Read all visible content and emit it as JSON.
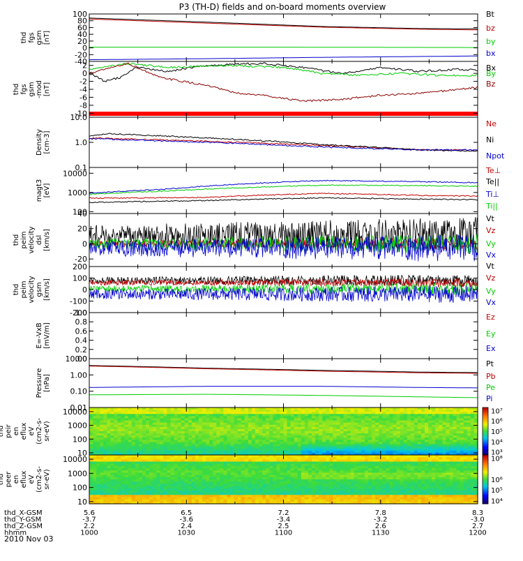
{
  "title": "P3 (TH-D) fields and on-board moments overview",
  "date": "2010 Nov 03",
  "orbit_rows": [
    {
      "label": "thd_X-GSM",
      "values": [
        "5.6",
        "6.5",
        "7.2",
        "7.8",
        "8.3"
      ]
    },
    {
      "label": "thd_Y-GSM",
      "values": [
        "-3.7",
        "-3.6",
        "-3.4",
        "-3.2",
        "-3.0"
      ]
    },
    {
      "label": "thd_Z-GSM",
      "values": [
        "2.2",
        "2.4",
        "2.5",
        "2.6",
        "2.7"
      ]
    },
    {
      "label": "hhmm",
      "values": [
        "1000",
        "1030",
        "1100",
        "1130",
        "1200"
      ]
    }
  ],
  "chart_data": [
    {
      "type": "line",
      "ylabel": [
        "thd",
        "fgs",
        "gsm",
        "[nT]"
      ],
      "ylim": [
        -40,
        100
      ],
      "yticks": [
        "100",
        "80",
        "60",
        "40",
        "20",
        "0",
        "-20",
        "-40"
      ],
      "tick_values": [
        100,
        80,
        60,
        40,
        20,
        0,
        -20,
        -40
      ],
      "series": [
        {
          "name": "Bt",
          "color": "#000000",
          "points": [
            [
              0,
              88
            ],
            [
              0.3,
              76
            ],
            [
              0.6,
              63
            ],
            [
              0.85,
              57
            ],
            [
              1,
              56
            ]
          ]
        },
        {
          "name": "bz",
          "color": "#c00000",
          "points": [
            [
              0,
              85
            ],
            [
              0.3,
              73
            ],
            [
              0.6,
              61
            ],
            [
              0.85,
              55
            ],
            [
              1,
              53
            ]
          ]
        },
        {
          "name": "by",
          "color": "#00cc00",
          "points": [
            [
              0,
              2
            ],
            [
              0.5,
              2
            ],
            [
              1,
              1
            ]
          ]
        },
        {
          "name": "bx",
          "color": "#0000cc",
          "points": [
            [
              0,
              -35
            ],
            [
              0.3,
              -32
            ],
            [
              0.6,
              -28
            ],
            [
              1,
              -24
            ]
          ]
        }
      ]
    },
    {
      "type": "line",
      "ylabel": [
        "thd",
        "fgs",
        "gsm",
        "-mod",
        "[nT]"
      ],
      "ylim": [
        -11,
        3
      ],
      "yticks": [
        "2",
        "0",
        "-2",
        "-4",
        "-6",
        "-8",
        "-10"
      ],
      "tick_values": [
        2,
        0,
        -2,
        -4,
        -6,
        -8,
        -10
      ],
      "series": [
        {
          "name": "Bx",
          "color": "#000000",
          "points": [
            [
              0,
              0
            ],
            [
              0.04,
              -2
            ],
            [
              0.08,
              -1
            ],
            [
              0.12,
              1.5
            ],
            [
              0.2,
              0.5
            ],
            [
              0.3,
              2
            ],
            [
              0.45,
              2.5
            ],
            [
              0.55,
              1.5
            ],
            [
              0.65,
              0
            ],
            [
              0.75,
              1.5
            ],
            [
              0.85,
              0.5
            ],
            [
              0.95,
              1
            ],
            [
              1,
              0.8
            ]
          ]
        },
        {
          "name": "By",
          "color": "#00cc00",
          "points": [
            [
              0,
              1
            ],
            [
              0.1,
              2.5
            ],
            [
              0.2,
              1.5
            ],
            [
              0.35,
              2
            ],
            [
              0.5,
              1.5
            ],
            [
              0.6,
              0
            ],
            [
              0.7,
              -0.5
            ],
            [
              0.8,
              0
            ],
            [
              0.9,
              -0.5
            ],
            [
              1,
              -0.5
            ]
          ]
        },
        {
          "name": "Bz",
          "color": "#8b0000",
          "points": [
            [
              0,
              0
            ],
            [
              0.1,
              2.5
            ],
            [
              0.18,
              -1
            ],
            [
              0.3,
              -3
            ],
            [
              0.38,
              -5
            ],
            [
              0.45,
              -5.5
            ],
            [
              0.55,
              -7
            ],
            [
              0.65,
              -6.5
            ],
            [
              0.75,
              -5.5
            ],
            [
              0.85,
              -5
            ],
            [
              0.95,
              -4
            ],
            [
              1,
              -3.5
            ]
          ]
        }
      ]
    },
    {
      "type": "line",
      "ylabel": [
        "Density",
        "[cm-3]"
      ],
      "log_scale": true,
      "ylim": [
        0.1,
        10
      ],
      "yticks": [
        "10.0",
        "1.0",
        "0.1"
      ],
      "tick_values": [
        10,
        1,
        0.1
      ],
      "series": [
        {
          "name": "Ne",
          "color": "#c00000",
          "points": [
            [
              0,
              1.5
            ],
            [
              0.3,
              1.1
            ],
            [
              0.6,
              0.75
            ],
            [
              0.85,
              0.5
            ],
            [
              1,
              0.5
            ]
          ]
        },
        {
          "name": "Ni",
          "color": "#000000",
          "points": [
            [
              0,
              1.8
            ],
            [
              0.05,
              2.2
            ],
            [
              0.3,
              1.5
            ],
            [
              0.6,
              0.8
            ],
            [
              0.85,
              0.5
            ],
            [
              1,
              0.45
            ]
          ]
        },
        {
          "name": "Npot",
          "color": "#0000cc",
          "points": [
            [
              0,
              1.4
            ],
            [
              0.3,
              1.0
            ],
            [
              0.6,
              0.65
            ],
            [
              0.85,
              0.5
            ],
            [
              1,
              0.5
            ]
          ]
        }
      ]
    },
    {
      "type": "line",
      "ylabel": [
        "magt3",
        "[eV]"
      ],
      "log_scale": true,
      "ylim": [
        80,
        20000
      ],
      "yticks": [
        "10000",
        "1000",
        "100"
      ],
      "tick_values": [
        10000,
        1000,
        100
      ],
      "series": [
        {
          "name": "Te⊥",
          "color": "#c00000",
          "points": [
            [
              0,
              500
            ],
            [
              0.3,
              550
            ],
            [
              0.6,
              900
            ],
            [
              0.85,
              700
            ],
            [
              1,
              650
            ]
          ]
        },
        {
          "name": "Te||",
          "color": "#000000",
          "points": [
            [
              0,
              300
            ],
            [
              0.3,
              380
            ],
            [
              0.6,
              520
            ],
            [
              0.85,
              450
            ],
            [
              1,
              420
            ]
          ]
        },
        {
          "name": "Ti⊥",
          "color": "#0000cc",
          "points": [
            [
              0,
              900
            ],
            [
              0.2,
              1500
            ],
            [
              0.4,
              2800
            ],
            [
              0.6,
              4200
            ],
            [
              0.85,
              3700
            ],
            [
              1,
              3200
            ]
          ]
        },
        {
          "name": "Ti||",
          "color": "#00cc00",
          "points": [
            [
              0,
              800
            ],
            [
              0.2,
              1200
            ],
            [
              0.4,
              1800
            ],
            [
              0.6,
              2400
            ],
            [
              0.85,
              2300
            ],
            [
              1,
              2100
            ]
          ]
        }
      ]
    },
    {
      "type": "line",
      "ylabel": [
        "thd",
        "peim",
        "velocity",
        "dsl",
        "[km/s]"
      ],
      "ylim": [
        -30,
        40
      ],
      "yticks": [
        "40",
        "20",
        "0",
        "-20"
      ],
      "tick_values": [
        40,
        20,
        0,
        -20
      ],
      "noise_series": true,
      "series": [
        {
          "name": "Vt",
          "color": "#000000",
          "mean": 12,
          "amp": 18
        },
        {
          "name": "Vz",
          "color": "#c00000",
          "mean": 0,
          "amp": 6
        },
        {
          "name": "Vy",
          "color": "#00cc00",
          "mean": 0,
          "amp": 10
        },
        {
          "name": "Vx",
          "color": "#0000cc",
          "mean": -6,
          "amp": 14
        }
      ]
    },
    {
      "type": "line",
      "ylabel": [
        "thd",
        "peim",
        "velocity",
        "gsm",
        "[km/s]"
      ],
      "ylim": [
        -200,
        200
      ],
      "yticks": [
        "200",
        "100",
        "0",
        "-100",
        "-200"
      ],
      "tick_values": [
        200,
        100,
        0,
        -100,
        -200
      ],
      "noise_series": true,
      "series": [
        {
          "name": "Vt",
          "color": "#000000",
          "mean": 80,
          "amp": 40
        },
        {
          "name": "Vz",
          "color": "#c00000",
          "mean": 60,
          "amp": 30
        },
        {
          "name": "Vy",
          "color": "#00cc00",
          "mean": 5,
          "amp": 40
        },
        {
          "name": "Vx",
          "color": "#0000cc",
          "mean": -40,
          "amp": 60
        }
      ]
    },
    {
      "type": "line",
      "ylabel": [
        "E=-VxB",
        "[mV/m]"
      ],
      "ylim": [
        0,
        1
      ],
      "yticks": [
        "1.0",
        "0.8",
        "0.6",
        "0.4",
        "0.2",
        "0.0"
      ],
      "tick_values": [
        1,
        0.8,
        0.6,
        0.4,
        0.2,
        0
      ],
      "series": [
        {
          "name": "Ez",
          "color": "#c00000",
          "points": []
        },
        {
          "name": "Ey",
          "color": "#00cc00",
          "points": []
        },
        {
          "name": "Ex",
          "color": "#0000cc",
          "points": []
        }
      ]
    },
    {
      "type": "line",
      "ylabel": [
        "Pressure",
        "[nPa]"
      ],
      "log_scale": true,
      "ylim": [
        0.01,
        10
      ],
      "yticks": [
        "10.00",
        "1.00",
        "0.10",
        "0.01"
      ],
      "tick_values": [
        10,
        1,
        0.1,
        0.01
      ],
      "series": [
        {
          "name": "Pt",
          "color": "#000000",
          "points": [
            [
              0,
              3.8
            ],
            [
              0.3,
              2.6
            ],
            [
              0.6,
              1.9
            ],
            [
              0.85,
              1.5
            ],
            [
              1,
              1.4
            ]
          ]
        },
        {
          "name": "Pb",
          "color": "#c00000",
          "points": [
            [
              0,
              3.5
            ],
            [
              0.3,
              2.4
            ],
            [
              0.6,
              1.7
            ],
            [
              0.85,
              1.35
            ],
            [
              1,
              1.25
            ]
          ]
        },
        {
          "name": "Pe",
          "color": "#00cc00",
          "points": [
            [
              0,
              0.06
            ],
            [
              0.3,
              0.065
            ],
            [
              0.6,
              0.055
            ],
            [
              0.85,
              0.045
            ],
            [
              1,
              0.04
            ]
          ]
        },
        {
          "name": "Pi",
          "color": "#0000cc",
          "points": [
            [
              0,
              0.17
            ],
            [
              0.3,
              0.2
            ],
            [
              0.6,
              0.2
            ],
            [
              0.85,
              0.17
            ],
            [
              1,
              0.16
            ]
          ]
        }
      ]
    },
    {
      "type": "heatmap",
      "ylabel": [
        "thd",
        "peir",
        "en",
        "eflux",
        "eV",
        "(cm2-s-",
        "sr-eV)"
      ],
      "log_scale": true,
      "ylim": [
        7,
        20000
      ],
      "yticks": [
        "10000",
        "1000",
        "100",
        "10"
      ],
      "tick_values": [
        10000,
        1000,
        100,
        10
      ],
      "colorbar": [
        "10⁷",
        "10⁶",
        "10⁵",
        "10⁴",
        "10³"
      ],
      "colorbar_values": [
        10000000,
        1000000,
        100000,
        10000,
        1000
      ],
      "clim": [
        500,
        20000000
      ],
      "profile": "ions"
    },
    {
      "type": "heatmap",
      "ylabel": [
        "thd",
        "peer",
        "en",
        "eflux",
        "eV",
        "(cm2-s-",
        "sr-eV)"
      ],
      "log_scale": true,
      "ylim": [
        7,
        20000
      ],
      "yticks": [
        "10000",
        "1000",
        "100",
        "10"
      ],
      "tick_values": [
        10000,
        1000,
        100,
        10
      ],
      "colorbar": [
        "10⁸",
        "10⁶",
        "10⁵",
        "10⁴"
      ],
      "colorbar_values": [
        100000000,
        1000000,
        100000,
        10000
      ],
      "clim": [
        5000,
        200000000
      ],
      "profile": "electrons"
    }
  ],
  "colors": {
    "redbar": "#ff0000"
  }
}
